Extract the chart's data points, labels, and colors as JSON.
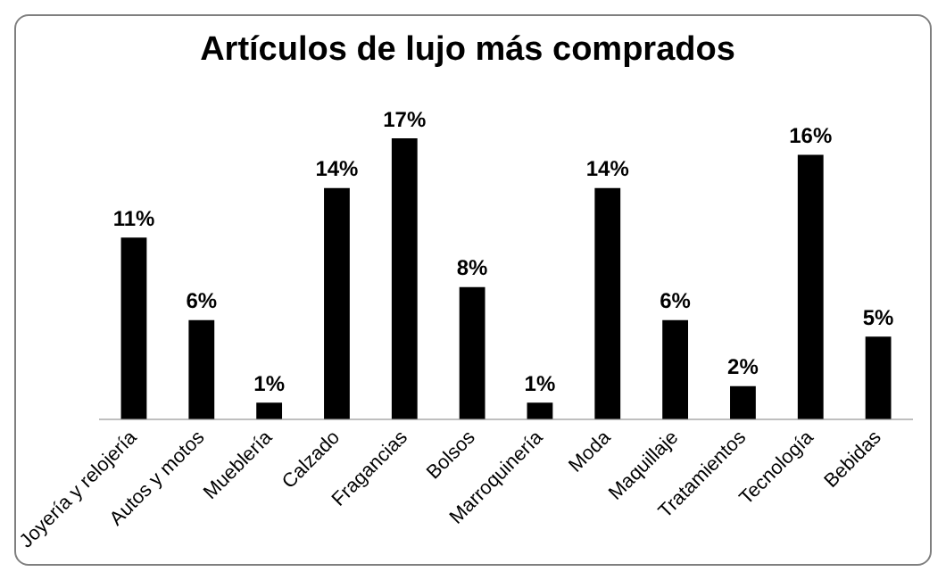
{
  "chart_data": {
    "type": "bar",
    "title": "Artículos de lujo más comprados",
    "categories": [
      "Joyería y relojería",
      "Autos y motos",
      "Mueblería",
      "Calzado",
      "Fragancias",
      "Bolsos",
      "Marroquinería",
      "Moda",
      "Maquillaje",
      "Tratamientos",
      "Tecnología",
      "Bebidas"
    ],
    "values": [
      11,
      6,
      1,
      14,
      17,
      8,
      1,
      14,
      6,
      2,
      16,
      5
    ],
    "value_labels": [
      "11%",
      "6%",
      "1%",
      "14%",
      "17%",
      "8%",
      "1%",
      "14%",
      "6%",
      "2%",
      "16%",
      "5%"
    ],
    "color": "#000000",
    "grid": false,
    "legend": false
  }
}
